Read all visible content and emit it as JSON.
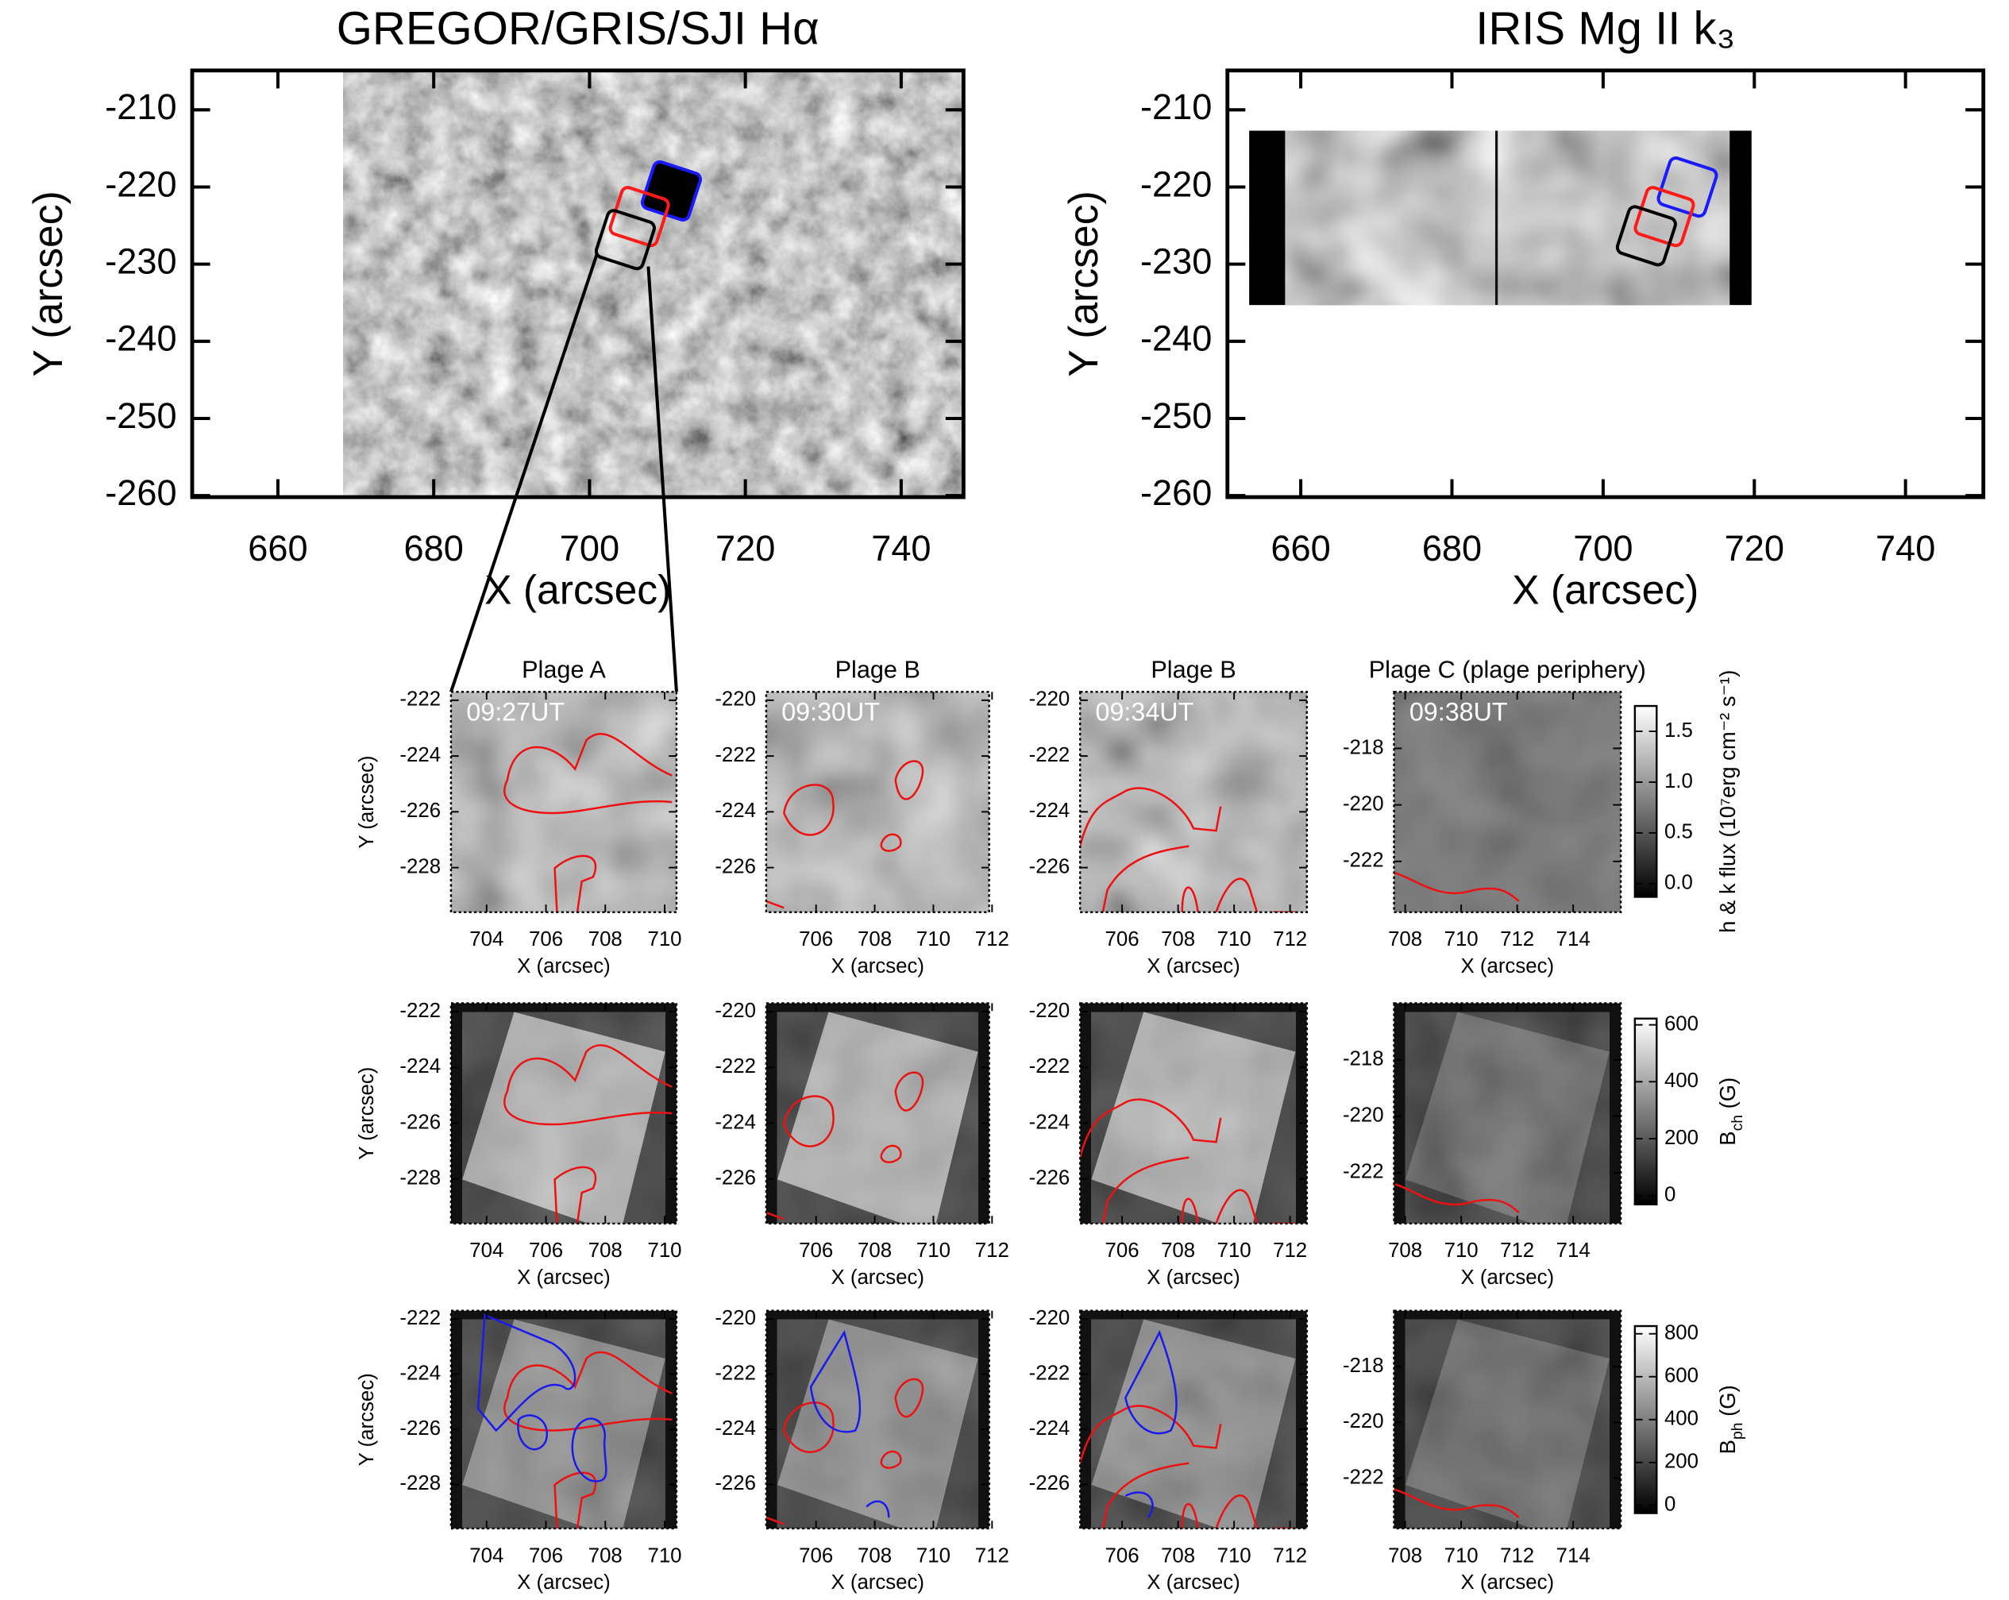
{
  "chart_data": [
    {
      "type": "image",
      "title": "GREGOR/GRIS/SJI Hα",
      "xlabel": "X (arcsec)",
      "ylabel": "Y (arcsec)",
      "xlim": [
        649,
        748
      ],
      "ylim": [
        -260.2,
        -204.9
      ],
      "xticks": [
        660,
        680,
        700,
        720,
        740
      ],
      "yticks": [
        -210,
        -220,
        -230,
        -240,
        -250,
        -260
      ]
    },
    {
      "type": "image",
      "title": "IRIS Mg II k₃",
      "xlabel": "X (arcsec)",
      "ylabel": "Y (arcsec)",
      "xlim": [
        650.3,
        750.3
      ],
      "ylim": [
        -260.2,
        -204.9
      ],
      "xticks": [
        660,
        680,
        700,
        720,
        740
      ],
      "yticks": [
        -210,
        -220,
        -230,
        -240,
        -250,
        -260
      ]
    },
    {
      "type": "image",
      "title": "Plage A",
      "annotation": "09:27UT",
      "xlabel": "X (arcsec)",
      "ylabel": "Y (arcsec)",
      "xlim": [
        702.8,
        710.4
      ],
      "ylim": [
        -229.6,
        -221.7
      ],
      "xticks": [
        704,
        706,
        708,
        710
      ],
      "yticks": [
        -222,
        -224,
        -226,
        -228
      ]
    },
    {
      "type": "image",
      "title": "Plage B",
      "annotation": "09:30UT",
      "xlabel": "X (arcsec)",
      "xlim": [
        704.3,
        711.9
      ],
      "ylim": [
        -227.6,
        -219.7
      ],
      "xticks": [
        706,
        708,
        710,
        712
      ],
      "yticks": [
        -220,
        -222,
        -224,
        -226
      ]
    },
    {
      "type": "image",
      "title": "Plage B",
      "annotation": "09:34UT",
      "xlabel": "X (arcsec)",
      "xlim": [
        704.5,
        712.6
      ],
      "ylim": [
        -227.6,
        -219.7
      ],
      "xticks": [
        706,
        708,
        710,
        712
      ],
      "yticks": [
        -220,
        -222,
        -224,
        -226
      ]
    },
    {
      "type": "image",
      "title": "Plage C (plage periphery)",
      "annotation": "09:38UT",
      "xlabel": "X (arcsec)",
      "xlim": [
        707.6,
        715.7
      ],
      "ylim": [
        -223.8,
        -216.0
      ],
      "xticks": [
        708,
        710,
        712,
        714
      ],
      "yticks": [
        -218,
        -220,
        -222
      ]
    },
    {
      "type": "image",
      "xlabel": "X (arcsec)",
      "ylabel": "Y (arcsec)",
      "xlim": [
        702.8,
        710.4
      ],
      "ylim": [
        -229.6,
        -221.7
      ],
      "xticks": [
        704,
        706,
        708,
        710
      ],
      "yticks": [
        -222,
        -224,
        -226,
        -228
      ]
    },
    {
      "type": "image",
      "xlabel": "X (arcsec)",
      "xlim": [
        704.3,
        711.9
      ],
      "ylim": [
        -227.6,
        -219.7
      ],
      "xticks": [
        706,
        708,
        710,
        712
      ],
      "yticks": [
        -220,
        -222,
        -224,
        -226
      ]
    },
    {
      "type": "image",
      "xlabel": "X (arcsec)",
      "xlim": [
        704.5,
        712.6
      ],
      "ylim": [
        -227.6,
        -219.7
      ],
      "xticks": [
        706,
        708,
        710,
        712
      ],
      "yticks": [
        -220,
        -222,
        -224,
        -226
      ]
    },
    {
      "type": "image",
      "xlabel": "X (arcsec)",
      "xlim": [
        707.6,
        715.7
      ],
      "ylim": [
        -223.8,
        -216.0
      ],
      "xticks": [
        708,
        710,
        712,
        714
      ],
      "yticks": [
        -218,
        -220,
        -222
      ]
    },
    {
      "type": "image",
      "xlabel": "X (arcsec)",
      "ylabel": "Y (arcsec)",
      "xlim": [
        702.8,
        710.4
      ],
      "ylim": [
        -229.6,
        -221.7
      ],
      "xticks": [
        704,
        706,
        708,
        710
      ],
      "yticks": [
        -222,
        -224,
        -226,
        -228
      ]
    },
    {
      "type": "image",
      "xlabel": "X (arcsec)",
      "xlim": [
        704.3,
        711.9
      ],
      "ylim": [
        -227.6,
        -219.7
      ],
      "xticks": [
        706,
        708,
        710,
        712
      ],
      "yticks": [
        -220,
        -222,
        -224,
        -226
      ]
    },
    {
      "type": "image",
      "xlabel": "X (arcsec)",
      "xlim": [
        704.5,
        712.6
      ],
      "ylim": [
        -227.6,
        -219.7
      ],
      "xticks": [
        706,
        708,
        710,
        712
      ],
      "yticks": [
        -220,
        -222,
        -224,
        -226
      ]
    },
    {
      "type": "image",
      "xlabel": "X (arcsec)",
      "xlim": [
        707.6,
        715.7
      ],
      "ylim": [
        -223.8,
        -216.0
      ],
      "xticks": [
        708,
        710,
        712,
        714
      ],
      "yticks": [
        -218,
        -220,
        -222
      ]
    },
    {
      "type": "colorbar",
      "label": [
        "h & k flux (10⁷erg cm⁻² s⁻¹)"
      ],
      "ylim": [
        -0.13,
        1.75
      ],
      "yticks": [
        {
          "value": 0,
          "label": "0.0"
        },
        {
          "value": 0.5,
          "label": "0.5"
        },
        {
          "value": 1,
          "label": "1.0"
        },
        {
          "value": 1.5,
          "label": "1.5"
        }
      ]
    },
    {
      "type": "colorbar",
      "label": [
        "B",
        "ch",
        " (G)"
      ],
      "ylim": [
        -31,
        622
      ],
      "yticks": [
        0,
        200,
        400,
        600
      ]
    },
    {
      "type": "colorbar",
      "label": [
        "B",
        "ph",
        " (G)"
      ],
      "ylim": [
        -36,
        836
      ],
      "yticks": [
        0,
        200,
        400,
        600,
        800
      ]
    }
  ]
}
